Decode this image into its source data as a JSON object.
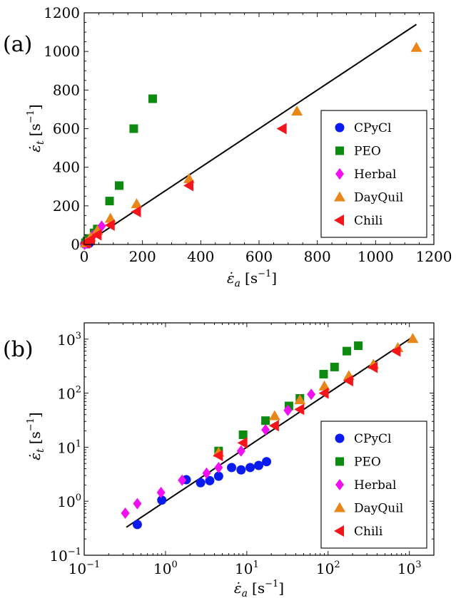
{
  "panels": [
    {
      "label": "(a)"
    },
    {
      "label": "(b)"
    }
  ],
  "chart_data": [
    {
      "type": "scatter",
      "xscale": "linear",
      "yscale": "linear",
      "xlim": [
        0,
        1200
      ],
      "ylim": [
        0,
        1200
      ],
      "xticks": [
        "0",
        "200",
        "400",
        "600",
        "800",
        "1000",
        "1200"
      ],
      "yticks": [
        "0",
        "200",
        "400",
        "600",
        "800",
        "1000",
        "1200"
      ],
      "xlabel": {
        "symbol": "ε̇",
        "sub": "a",
        "unit": "[s",
        "unit_exp": "−1",
        "unit_close": "]"
      },
      "ylabel": {
        "symbol": "ε̇",
        "sub": "t",
        "unit": "[s",
        "unit_exp": "−1",
        "unit_close": "]"
      },
      "legend_position": "lower-right",
      "fit_line": {
        "x": [
          2,
          1140
        ],
        "y": [
          2,
          1140
        ]
      },
      "series": [
        {
          "name": "CPyCl",
          "color": "#0a1bf0",
          "marker": "circle",
          "x": [
            2,
            5,
            8,
            11,
            13,
            17
          ],
          "y": [
            3,
            4,
            5,
            4,
            4,
            6
          ]
        },
        {
          "name": "PEO",
          "color": "#0d8a10",
          "marker": "square",
          "x": [
            4,
            9,
            17,
            34,
            45,
            87,
            120,
            170,
            235
          ],
          "y": [
            9,
            17,
            31,
            60,
            80,
            225,
            305,
            600,
            755
          ]
        },
        {
          "name": "Herbal",
          "color": "#f20ff2",
          "marker": "diamond",
          "x": [
            1,
            2,
            4,
            9,
            17,
            32,
            60
          ],
          "y": [
            1,
            3,
            4,
            8,
            21,
            48,
            95
          ]
        },
        {
          "name": "DayQuil",
          "color": "#e8861a",
          "marker": "triangle-up",
          "x": [
            5,
            22,
            45,
            90,
            180,
            360,
            730,
            1140
          ],
          "y": [
            8,
            38,
            72,
            135,
            210,
            340,
            690,
            1020
          ]
        },
        {
          "name": "Chili",
          "color": "#f5151a",
          "marker": "triangle-left",
          "x": [
            5,
            9,
            22,
            45,
            90,
            180,
            360,
            680
          ],
          "y": [
            7,
            12,
            25,
            50,
            100,
            170,
            305,
            600
          ]
        }
      ]
    },
    {
      "type": "scatter",
      "xscale": "log",
      "yscale": "log",
      "xlim": [
        0.1,
        2000
      ],
      "ylim": [
        0.1,
        2000
      ],
      "xticks": [
        {
          "base": "10",
          "exp": "−1"
        },
        {
          "base": "10",
          "exp": "0"
        },
        {
          "base": "10",
          "exp": "1"
        },
        {
          "base": "10",
          "exp": "2"
        },
        {
          "base": "10",
          "exp": "3"
        }
      ],
      "yticks": [
        {
          "base": "10",
          "exp": "−1"
        },
        {
          "base": "10",
          "exp": "0"
        },
        {
          "base": "10",
          "exp": "1"
        },
        {
          "base": "10",
          "exp": "2"
        },
        {
          "base": "10",
          "exp": "3"
        }
      ],
      "xlabel": {
        "symbol": "ε̇",
        "sub": "a",
        "unit": "[s",
        "unit_exp": "−1",
        "unit_close": "]"
      },
      "ylabel": {
        "symbol": "ε̇",
        "sub": "t",
        "unit": "[s",
        "unit_exp": "−1",
        "unit_close": "]"
      },
      "legend_position": "lower-right",
      "fit_line": {
        "x": [
          0.33,
          1100
        ],
        "y": [
          0.33,
          1100
        ]
      },
      "series": [
        {
          "name": "CPyCl",
          "color": "#0a1bf0",
          "marker": "circle",
          "x": [
            0.45,
            0.9,
            1.8,
            2.7,
            3.5,
            4.5,
            6.5,
            8.5,
            11,
            14,
            17.5
          ],
          "y": [
            0.37,
            1.05,
            2.5,
            2.2,
            2.4,
            2.9,
            4.2,
            3.8,
            4.2,
            4.6,
            5.4
          ]
        },
        {
          "name": "PEO",
          "color": "#0d8a10",
          "marker": "square",
          "x": [
            4.5,
            9,
            17,
            33,
            45,
            88,
            120,
            170,
            235
          ],
          "y": [
            8.5,
            17,
            31,
            58,
            80,
            225,
            305,
            600,
            755
          ]
        },
        {
          "name": "Herbal",
          "color": "#f20ff2",
          "marker": "diamond",
          "x": [
            0.32,
            0.45,
            0.88,
            1.6,
            3.2,
            4.5,
            8.5,
            17,
            32,
            62
          ],
          "y": [
            0.6,
            0.9,
            1.45,
            2.45,
            3.3,
            4.2,
            8.5,
            21,
            48,
            95
          ]
        },
        {
          "name": "DayQuil",
          "color": "#e8861a",
          "marker": "triangle-up",
          "x": [
            4.5,
            22,
            45,
            90,
            180,
            360,
            720,
            1100
          ],
          "y": [
            8,
            38,
            75,
            135,
            210,
            340,
            690,
            1020
          ]
        },
        {
          "name": "Chili",
          "color": "#f5151a",
          "marker": "triangle-left",
          "x": [
            4.5,
            9,
            22,
            45,
            90,
            180,
            360,
            690
          ],
          "y": [
            7,
            12,
            25,
            50,
            100,
            170,
            300,
            600
          ]
        }
      ]
    }
  ]
}
